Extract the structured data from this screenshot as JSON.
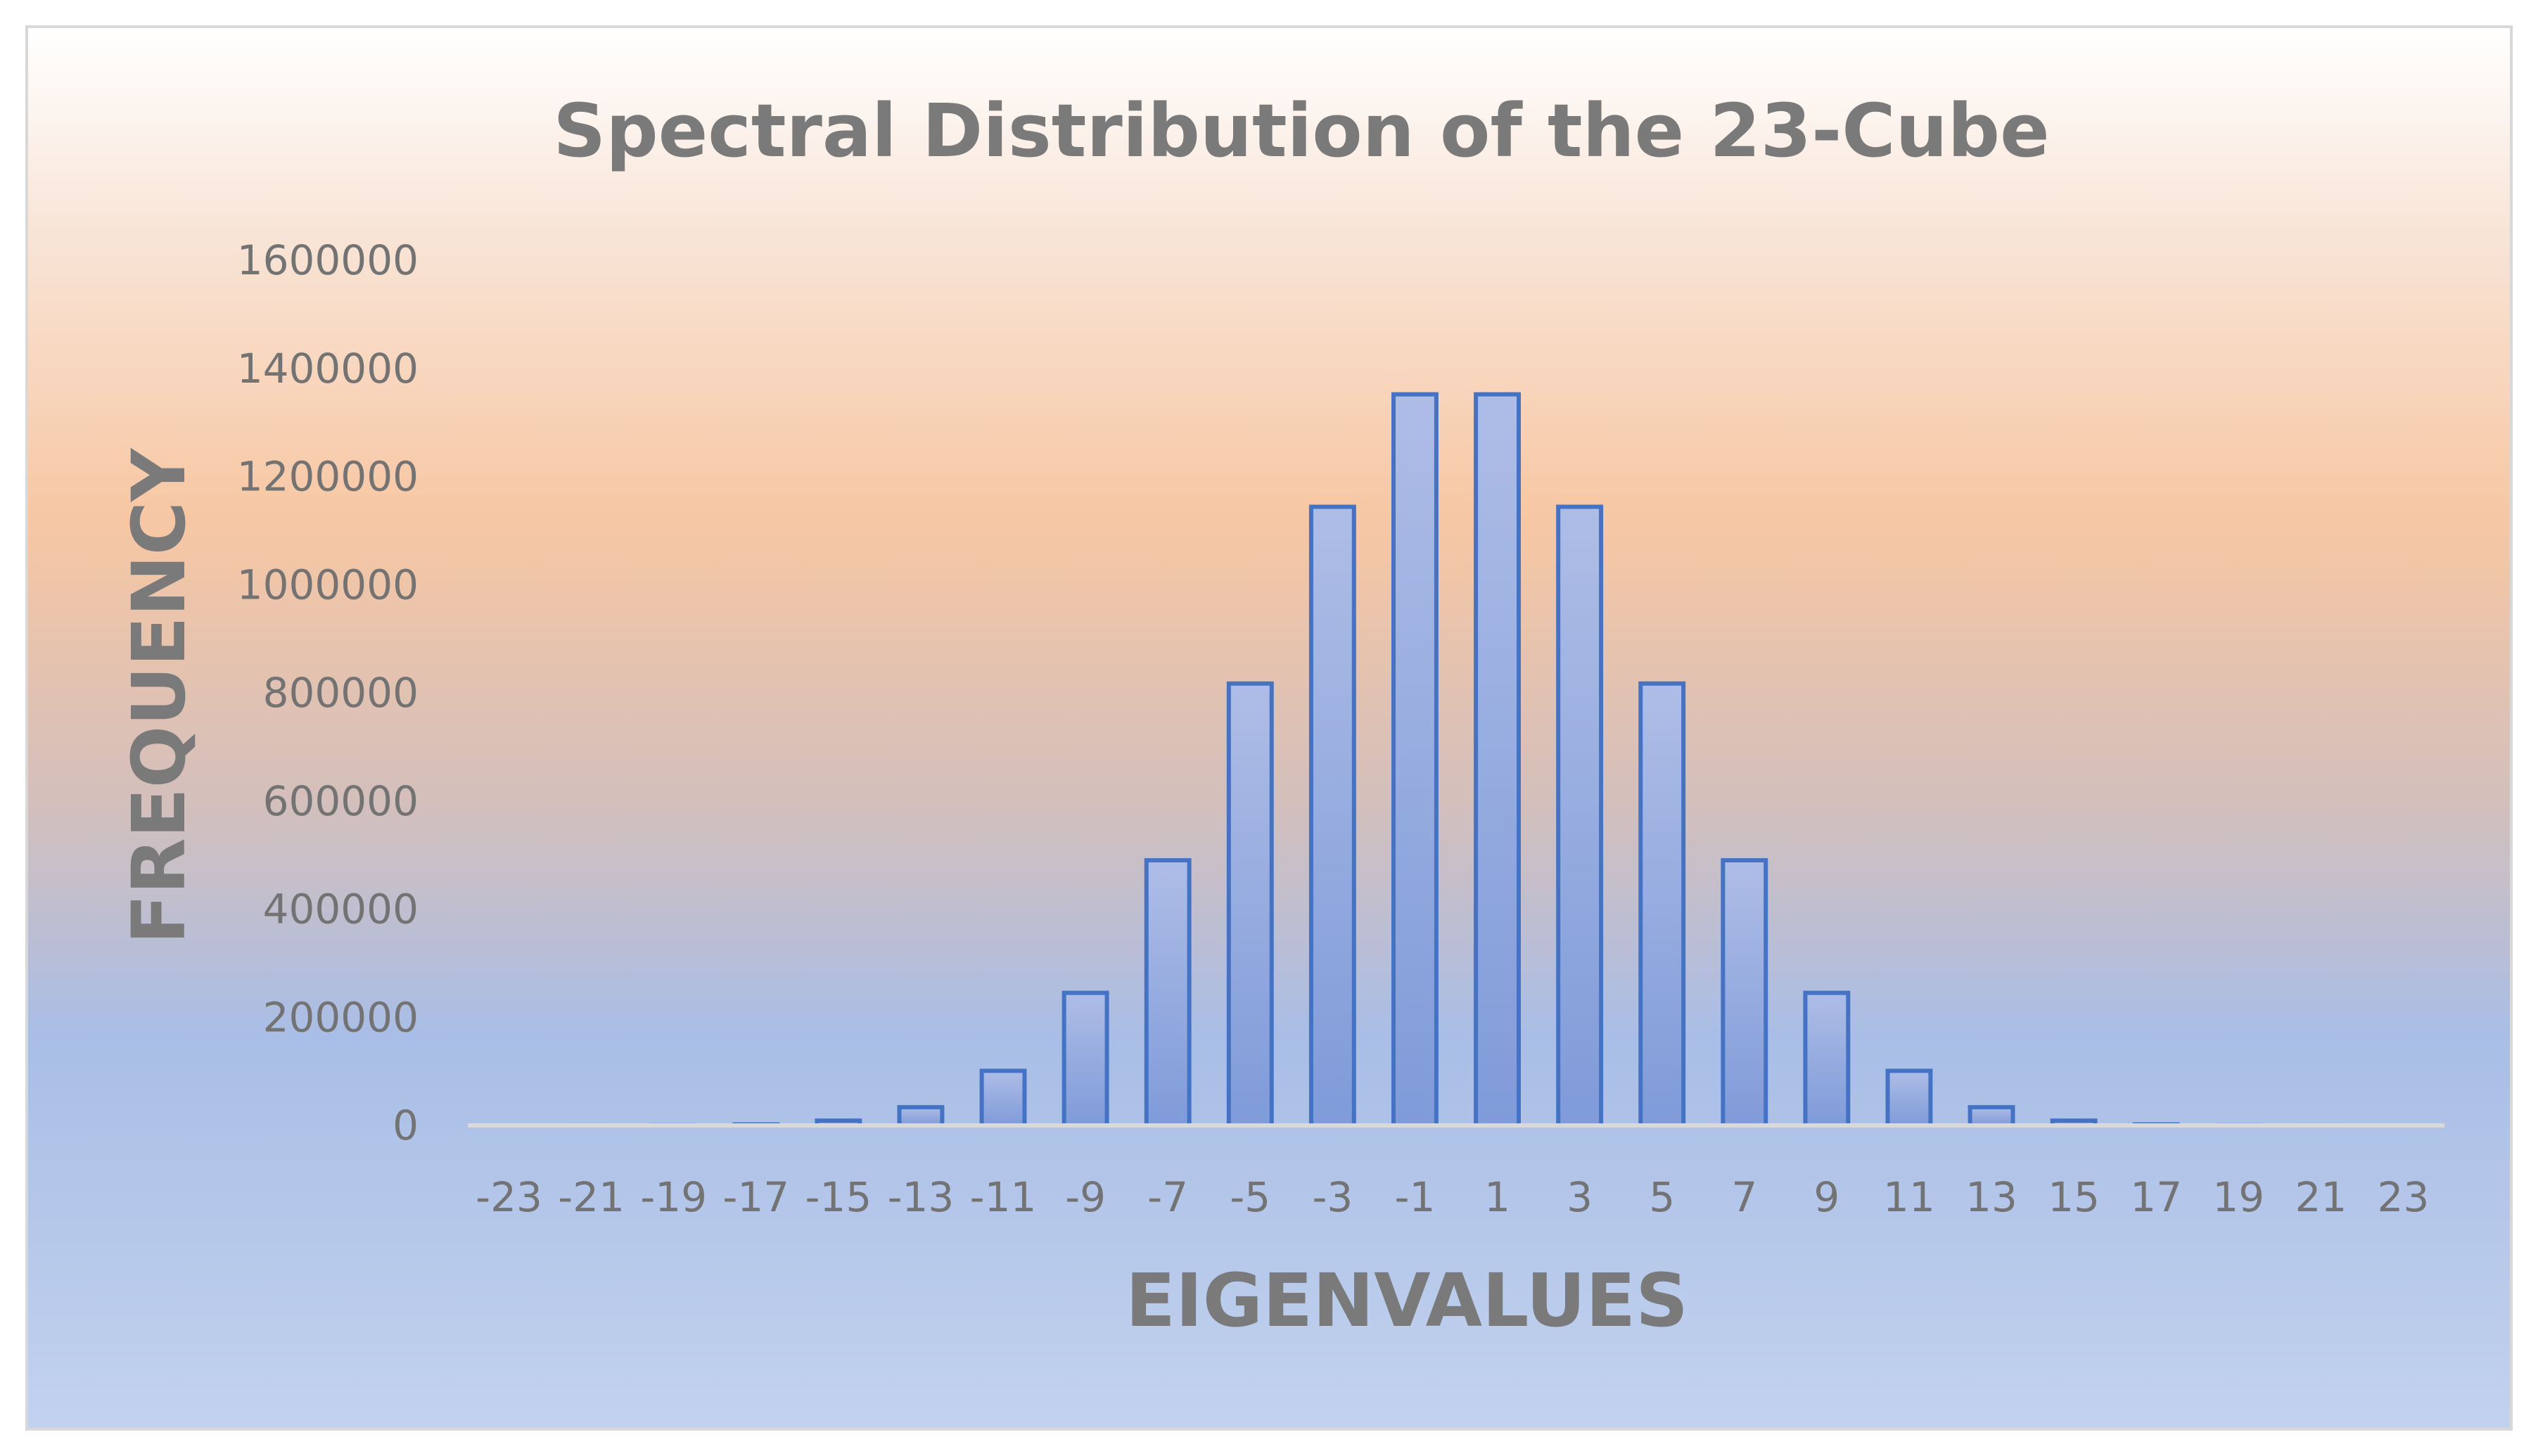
{
  "chart_data": {
    "type": "bar",
    "title": "Spectral Distribution of the 23-Cube",
    "xlabel": "EIGENVALUES",
    "ylabel": "FREQUENCY",
    "ylim": [
      0,
      1600000
    ],
    "yticks": [
      0,
      200000,
      400000,
      600000,
      800000,
      1000000,
      1200000,
      1400000,
      1600000
    ],
    "ytick_labels": [
      "0",
      "200000",
      "400000",
      "600000",
      "800000",
      "1000000",
      "1200000",
      "1400000",
      "1600000"
    ],
    "grid": false,
    "legend": "none",
    "categories": [
      "-23",
      "-21",
      "-19",
      "-17",
      "-15",
      "-13",
      "-11",
      "-9",
      "-7",
      "-5",
      "-3",
      "-1",
      "1",
      "3",
      "5",
      "7",
      "9",
      "11",
      "13",
      "15",
      "17",
      "19",
      "21",
      "23"
    ],
    "values": [
      1,
      23,
      253,
      1771,
      8855,
      33649,
      100947,
      245157,
      490314,
      817190,
      1144066,
      1352078,
      1352078,
      1144066,
      817190,
      490314,
      245157,
      100947,
      33649,
      8855,
      1771,
      253,
      23,
      1
    ],
    "colors": {
      "bar_stroke": "#4472c4",
      "bar_fill_top": "#aebde6",
      "bar_fill_bottom": "#7f9bd9",
      "axis_line": "#d9d9d9",
      "text": "#7a7a7a"
    }
  }
}
